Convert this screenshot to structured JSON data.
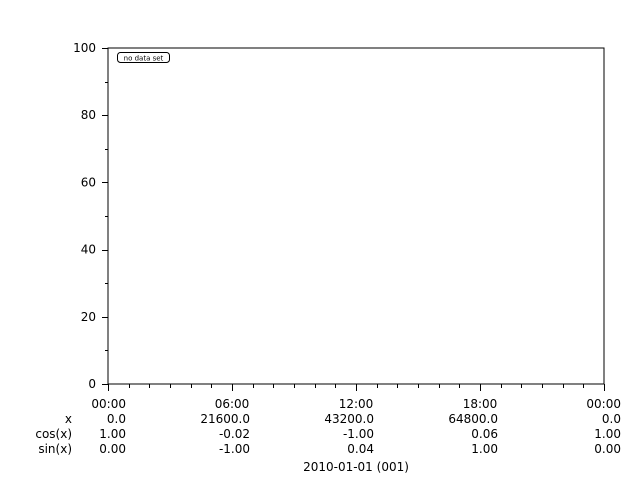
{
  "chart_data": {
    "type": "line",
    "series": [],
    "annotation": "no data set",
    "ylim": [
      0,
      100
    ],
    "y_ticks": [
      "0",
      "20",
      "40",
      "60",
      "80",
      "100"
    ],
    "x_ticks": [
      "00:00",
      "06:00",
      "12:00",
      "18:00",
      "00:00"
    ],
    "x_tick_rows": [
      {
        "label": "x",
        "values": [
          "0.0",
          "21600.0",
          "43200.0",
          "64800.0",
          "0.0"
        ]
      },
      {
        "label": "cos(x)",
        "values": [
          "1.00",
          "-0.02",
          "-1.00",
          "0.06",
          "1.00"
        ]
      },
      {
        "label": "sin(x)",
        "values": [
          "0.00",
          "-1.00",
          "0.04",
          "1.00",
          "0.00"
        ]
      }
    ],
    "xlabel": "2010-01-01 (001)",
    "grid": false
  }
}
